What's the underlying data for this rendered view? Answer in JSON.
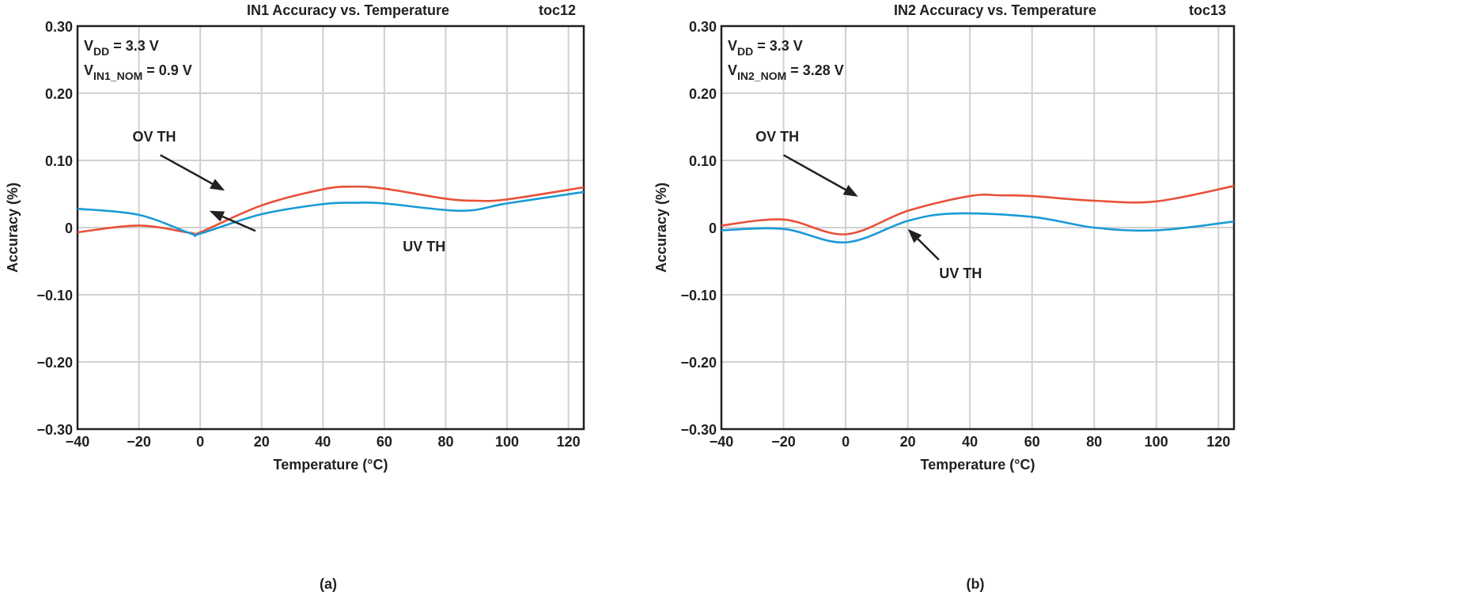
{
  "chart_data": [
    {
      "type": "line",
      "title": "IN1 Accuracy vs. Temperature",
      "figure_id": "toc12",
      "panel_label": "(a)",
      "xlabel": "Temperature (°C)",
      "ylabel": "Accuracy (%)",
      "xlim": [
        -40,
        125
      ],
      "ylim": [
        -0.3,
        0.3
      ],
      "xticks": [
        "−40",
        "−20",
        "0",
        "20",
        "40",
        "60",
        "80",
        "100",
        "120"
      ],
      "yticks": [
        "0.30",
        "0.20",
        "0.10",
        "0",
        "−0.10",
        "−0.20",
        "−0.30"
      ],
      "grid": true,
      "conditions": [
        {
          "main": "V",
          "sub": "DD",
          "rest": " = 3.3 V"
        },
        {
          "main": "V",
          "sub": "IN1_NOM",
          "rest": " = 0.9 V"
        }
      ],
      "series": [
        {
          "name": "OV TH",
          "color": "#e8503a",
          "x": [
            -40,
            -20,
            -3,
            0,
            20,
            40,
            50,
            60,
            80,
            90,
            100,
            125
          ],
          "y": [
            -0.007,
            0.003,
            -0.008,
            -0.007,
            0.033,
            0.057,
            0.061,
            0.058,
            0.043,
            0.04,
            0.042,
            0.06
          ]
        },
        {
          "name": "UV TH",
          "color": "#1a9ad6",
          "x": [
            -40,
            -20,
            -3,
            0,
            20,
            40,
            50,
            60,
            85,
            100,
            125
          ],
          "y": [
            0.028,
            0.019,
            -0.009,
            -0.009,
            0.02,
            0.035,
            0.037,
            0.036,
            0.025,
            0.036,
            0.053
          ]
        }
      ]
    },
    {
      "type": "line",
      "title": "IN2 Accuracy vs. Temperature",
      "figure_id": "toc13",
      "panel_label": "(b)",
      "xlabel": "Temperature (°C)",
      "ylabel": "Accuracy (%)",
      "xlim": [
        -40,
        125
      ],
      "ylim": [
        -0.3,
        0.3
      ],
      "xticks": [
        "−40",
        "−20",
        "0",
        "20",
        "40",
        "60",
        "80",
        "100",
        "120"
      ],
      "yticks": [
        "0.30",
        "0.20",
        "0.10",
        "0",
        "−0.10",
        "−0.20",
        "−0.30"
      ],
      "grid": true,
      "conditions": [
        {
          "main": "V",
          "sub": "DD",
          "rest": " = 3.3 V"
        },
        {
          "main": "V",
          "sub": "IN2_NOM",
          "rest": " = 3.28 V"
        }
      ],
      "series": [
        {
          "name": "OV TH",
          "color": "#e8503a",
          "x": [
            -40,
            -20,
            0,
            20,
            40,
            50,
            60,
            80,
            100,
            125
          ],
          "y": [
            0.003,
            0.012,
            -0.01,
            0.025,
            0.047,
            0.048,
            0.047,
            0.04,
            0.039,
            0.062
          ]
        },
        {
          "name": "UV TH",
          "color": "#1a9ad6",
          "x": [
            -40,
            -20,
            0,
            20,
            35,
            60,
            80,
            100,
            125
          ],
          "y": [
            -0.004,
            -0.002,
            -0.022,
            0.01,
            0.021,
            0.016,
            0.0,
            -0.004,
            0.009
          ]
        }
      ]
    }
  ]
}
